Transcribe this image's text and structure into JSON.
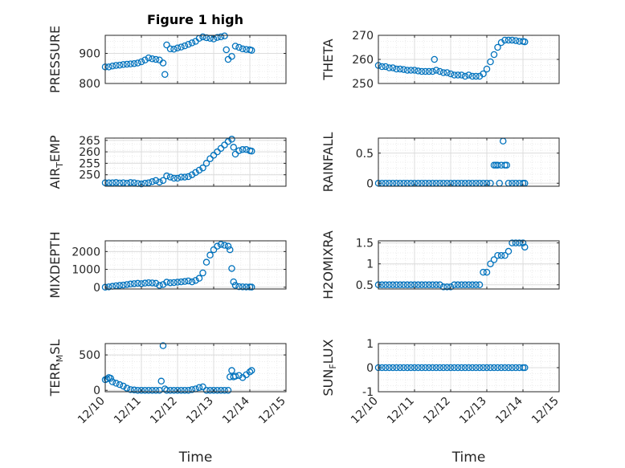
{
  "figure": {
    "title": "Figure 1 high"
  },
  "colors": {
    "marker": "#0072bd",
    "axis": "#262626",
    "grid": "#dcdcdc",
    "minor_grid": "#ececec"
  },
  "chart_data": [
    {
      "type": "scatter",
      "ylabel": "PRESSURE",
      "ylim": [
        800,
        960
      ],
      "yticks": [
        "800",
        "900"
      ],
      "ytick_values": [
        800,
        900
      ],
      "xlim": [
        0,
        5
      ],
      "xticks": [
        "12/10",
        "12/11",
        "12/12",
        "12/13",
        "12/14",
        "12/15"
      ],
      "xlabel": "",
      "grid": "on",
      "marker": "open-circle",
      "x": [
        0,
        0.1,
        0.2,
        0.3,
        0.4,
        0.5,
        0.6,
        0.7,
        0.8,
        0.9,
        1.0,
        1.1,
        1.2,
        1.3,
        1.4,
        1.5,
        1.6,
        1.65,
        1.7,
        1.8,
        1.9,
        2.0,
        2.1,
        2.2,
        2.3,
        2.4,
        2.5,
        2.6,
        2.7,
        2.8,
        2.9,
        3.0,
        3.1,
        3.2,
        3.3,
        3.35,
        3.4,
        3.5,
        3.6,
        3.7,
        3.8,
        3.9,
        4.0,
        4.05
      ],
      "y": [
        855,
        855,
        858,
        860,
        861,
        863,
        864,
        865,
        866,
        868,
        872,
        878,
        885,
        882,
        880,
        878,
        868,
        830,
        928,
        915,
        914,
        918,
        921,
        925,
        930,
        935,
        940,
        950,
        955,
        952,
        950,
        948,
        953,
        955,
        958,
        912,
        880,
        890,
        924,
        920,
        915,
        913,
        912,
        910
      ]
    },
    {
      "type": "scatter",
      "ylabel": "THETA",
      "ylim": [
        250,
        270
      ],
      "yticks": [
        "250",
        "260",
        "270"
      ],
      "ytick_values": [
        250,
        260,
        270
      ],
      "xlim": [
        0,
        5
      ],
      "xticks": [
        "12/10",
        "12/11",
        "12/12",
        "12/13",
        "12/14",
        "12/15"
      ],
      "xlabel": "",
      "grid": "on",
      "marker": "open-circle",
      "x": [
        0,
        0.1,
        0.2,
        0.3,
        0.4,
        0.5,
        0.6,
        0.7,
        0.8,
        0.9,
        1.0,
        1.1,
        1.2,
        1.3,
        1.4,
        1.5,
        1.55,
        1.6,
        1.7,
        1.8,
        1.9,
        2.0,
        2.1,
        2.2,
        2.3,
        2.4,
        2.5,
        2.6,
        2.7,
        2.8,
        2.9,
        3.0,
        3.1,
        3.2,
        3.3,
        3.4,
        3.5,
        3.6,
        3.7,
        3.8,
        3.9,
        4.0,
        4.05
      ],
      "y": [
        257.5,
        257,
        257,
        256.5,
        256.5,
        256,
        256,
        255.8,
        255.5,
        255.5,
        255.5,
        255.2,
        255,
        255,
        255,
        255,
        260,
        255.5,
        255,
        254.5,
        254.5,
        254,
        253.5,
        253.5,
        253.5,
        253,
        253.5,
        253,
        253,
        253,
        254,
        256,
        259,
        262,
        265,
        267,
        268,
        268,
        268,
        267.8,
        267.5,
        267.5,
        267.3
      ]
    },
    {
      "type": "scatter",
      "ylabel": "AIR_TEMP",
      "ylim": [
        245,
        266
      ],
      "yticks": [
        "250",
        "255",
        "260",
        "265"
      ],
      "ytick_values": [
        250,
        255,
        260,
        265
      ],
      "xlim": [
        0,
        5
      ],
      "xticks": [
        "12/10",
        "12/11",
        "12/12",
        "12/13",
        "12/14",
        "12/15"
      ],
      "xlabel": "",
      "grid": "on",
      "marker": "open-circle",
      "x": [
        0,
        0.1,
        0.2,
        0.3,
        0.4,
        0.5,
        0.6,
        0.7,
        0.8,
        0.9,
        1.0,
        1.1,
        1.2,
        1.3,
        1.4,
        1.5,
        1.6,
        1.7,
        1.8,
        1.9,
        2.0,
        2.1,
        2.2,
        2.3,
        2.4,
        2.5,
        2.6,
        2.7,
        2.8,
        2.9,
        3.0,
        3.1,
        3.2,
        3.3,
        3.4,
        3.5,
        3.55,
        3.6,
        3.7,
        3.8,
        3.9,
        4.0,
        4.05
      ],
      "y": [
        246.5,
        246.5,
        246.5,
        246.6,
        246.4,
        246.5,
        246.3,
        246.6,
        246.5,
        246.2,
        246,
        246.3,
        246.5,
        247,
        247.5,
        246.8,
        247.5,
        249.5,
        249,
        248.5,
        248.5,
        249,
        249,
        249.2,
        250,
        251,
        252,
        253,
        255,
        257,
        258.5,
        260,
        261.5,
        263,
        264.5,
        265.5,
        262,
        259,
        260.5,
        261,
        261,
        260.5,
        260.3
      ]
    },
    {
      "type": "scatter",
      "ylabel": "RAINFALL",
      "ylim": [
        -0.05,
        0.75
      ],
      "yticks": [
        "0",
        "0.5"
      ],
      "ytick_values": [
        0,
        0.5
      ],
      "xlim": [
        0,
        5
      ],
      "xticks": [
        "12/10",
        "12/11",
        "12/12",
        "12/13",
        "12/14",
        "12/15"
      ],
      "xlabel": "",
      "grid": "on",
      "marker": "open-circle",
      "x": [
        0,
        0.1,
        0.2,
        0.3,
        0.4,
        0.5,
        0.6,
        0.7,
        0.8,
        0.9,
        1.0,
        1.1,
        1.2,
        1.3,
        1.4,
        1.5,
        1.6,
        1.7,
        1.8,
        1.9,
        2.0,
        2.1,
        2.2,
        2.3,
        2.4,
        2.5,
        2.6,
        2.7,
        2.8,
        2.9,
        3.0,
        3.1,
        3.2,
        3.25,
        3.3,
        3.35,
        3.4,
        3.45,
        3.5,
        3.55,
        3.6,
        3.7,
        3.8,
        3.9,
        4.0,
        4.05
      ],
      "y": [
        0,
        0,
        0,
        0,
        0,
        0,
        0,
        0,
        0,
        0,
        0,
        0,
        0,
        0,
        0,
        0,
        0,
        0,
        0,
        0,
        0,
        0,
        0,
        0,
        0,
        0,
        0,
        0,
        0,
        0,
        0,
        0,
        0.3,
        0.3,
        0.3,
        0,
        0.3,
        0.7,
        0.3,
        0.3,
        0,
        0,
        0,
        0,
        0,
        0
      ]
    },
    {
      "type": "scatter",
      "ylabel": "MIXDEPTH",
      "ylim": [
        -100,
        2600
      ],
      "yticks": [
        "0",
        "1000",
        "2000"
      ],
      "ytick_values": [
        0,
        1000,
        2000
      ],
      "xlim": [
        0,
        5
      ],
      "xticks": [
        "12/10",
        "12/11",
        "12/12",
        "12/13",
        "12/14",
        "12/15"
      ],
      "xlabel": "",
      "grid": "on",
      "marker": "open-circle",
      "x": [
        0,
        0.1,
        0.2,
        0.3,
        0.4,
        0.5,
        0.6,
        0.7,
        0.8,
        0.9,
        1.0,
        1.1,
        1.2,
        1.3,
        1.4,
        1.5,
        1.6,
        1.7,
        1.8,
        1.9,
        2.0,
        2.1,
        2.2,
        2.3,
        2.4,
        2.5,
        2.6,
        2.7,
        2.8,
        2.9,
        3.0,
        3.1,
        3.2,
        3.3,
        3.4,
        3.45,
        3.5,
        3.55,
        3.6,
        3.7,
        3.8,
        3.9,
        4.0,
        4.05
      ],
      "y": [
        0,
        20,
        50,
        80,
        100,
        120,
        150,
        180,
        200,
        220,
        200,
        230,
        250,
        240,
        220,
        100,
        150,
        280,
        250,
        260,
        280,
        300,
        320,
        350,
        300,
        380,
        500,
        800,
        1400,
        1800,
        2100,
        2300,
        2400,
        2350,
        2300,
        2100,
        1050,
        300,
        100,
        30,
        20,
        10,
        10,
        5
      ]
    },
    {
      "type": "scatter",
      "ylabel": "H2OMIXRA",
      "ylim": [
        0.4,
        1.55
      ],
      "yticks": [
        "0.5",
        "1",
        "1.5"
      ],
      "ytick_values": [
        0.5,
        1,
        1.5
      ],
      "xlim": [
        0,
        5
      ],
      "xticks": [
        "12/10",
        "12/11",
        "12/12",
        "12/13",
        "12/14",
        "12/15"
      ],
      "xlabel": "",
      "grid": "on",
      "marker": "open-circle",
      "x": [
        0,
        0.1,
        0.2,
        0.3,
        0.4,
        0.5,
        0.6,
        0.7,
        0.8,
        0.9,
        1.0,
        1.1,
        1.2,
        1.3,
        1.4,
        1.5,
        1.6,
        1.7,
        1.8,
        1.9,
        2.0,
        2.1,
        2.2,
        2.3,
        2.4,
        2.5,
        2.6,
        2.7,
        2.8,
        2.9,
        3.0,
        3.1,
        3.2,
        3.3,
        3.4,
        3.5,
        3.6,
        3.7,
        3.8,
        3.9,
        4.0,
        4.05
      ],
      "y": [
        0.5,
        0.5,
        0.5,
        0.5,
        0.5,
        0.5,
        0.5,
        0.5,
        0.5,
        0.5,
        0.5,
        0.5,
        0.5,
        0.5,
        0.5,
        0.5,
        0.5,
        0.5,
        0.45,
        0.45,
        0.45,
        0.5,
        0.5,
        0.5,
        0.5,
        0.5,
        0.5,
        0.5,
        0.5,
        0.8,
        0.8,
        1,
        1.1,
        1.2,
        1.2,
        1.2,
        1.3,
        1.5,
        1.5,
        1.5,
        1.5,
        1.4
      ]
    },
    {
      "type": "scatter",
      "ylabel": "TERR_MSL",
      "ylim": [
        -20,
        660
      ],
      "yticks": [
        "0",
        "500"
      ],
      "ytick_values": [
        0,
        500
      ],
      "xlim": [
        0,
        5
      ],
      "xticks": [
        "12/10",
        "12/11",
        "12/12",
        "12/13",
        "12/14",
        "12/15"
      ],
      "xlabel": "Time",
      "grid": "on",
      "marker": "open-circle",
      "x": [
        0,
        0.05,
        0.1,
        0.15,
        0.2,
        0.3,
        0.4,
        0.5,
        0.6,
        0.7,
        0.8,
        0.9,
        1.0,
        1.1,
        1.2,
        1.3,
        1.4,
        1.5,
        1.55,
        1.6,
        1.65,
        1.7,
        1.8,
        1.9,
        2.0,
        2.1,
        2.2,
        2.3,
        2.4,
        2.5,
        2.6,
        2.7,
        2.8,
        2.9,
        3.0,
        3.1,
        3.2,
        3.3,
        3.4,
        3.45,
        3.5,
        3.55,
        3.6,
        3.7,
        3.8,
        3.9,
        4.0,
        4.05
      ],
      "y": [
        150,
        160,
        180,
        170,
        120,
        100,
        80,
        60,
        30,
        10,
        5,
        0,
        0,
        0,
        0,
        0,
        0,
        0,
        130,
        630,
        20,
        0,
        0,
        0,
        0,
        0,
        0,
        0,
        10,
        20,
        40,
        50,
        0,
        0,
        0,
        0,
        0,
        0,
        0,
        190,
        280,
        190,
        200,
        210,
        180,
        220,
        260,
        280
      ]
    },
    {
      "type": "scatter",
      "ylabel": "SUN_FLUX",
      "ylim": [
        -1,
        1
      ],
      "yticks": [
        "-1",
        "0",
        "1"
      ],
      "ytick_values": [
        -1,
        0,
        1
      ],
      "xlim": [
        0,
        5
      ],
      "xticks": [
        "12/10",
        "12/11",
        "12/12",
        "12/13",
        "12/14",
        "12/15"
      ],
      "xlabel": "Time",
      "grid": "on",
      "marker": "open-circle",
      "x": [
        0,
        0.1,
        0.2,
        0.3,
        0.4,
        0.5,
        0.6,
        0.7,
        0.8,
        0.9,
        1.0,
        1.1,
        1.2,
        1.3,
        1.4,
        1.5,
        1.6,
        1.7,
        1.8,
        1.9,
        2.0,
        2.1,
        2.2,
        2.3,
        2.4,
        2.5,
        2.6,
        2.7,
        2.8,
        2.9,
        3.0,
        3.1,
        3.2,
        3.3,
        3.4,
        3.5,
        3.6,
        3.7,
        3.8,
        3.9,
        4.0,
        4.05
      ],
      "y": [
        0,
        0,
        0,
        0,
        0,
        0,
        0,
        0,
        0,
        0,
        0,
        0,
        0,
        0,
        0,
        0,
        0,
        0,
        0,
        0,
        0,
        0,
        0,
        0,
        0,
        0,
        0,
        0,
        0,
        0,
        0,
        0,
        0,
        0,
        0,
        0,
        0,
        0,
        0,
        0,
        0,
        0
      ]
    }
  ]
}
